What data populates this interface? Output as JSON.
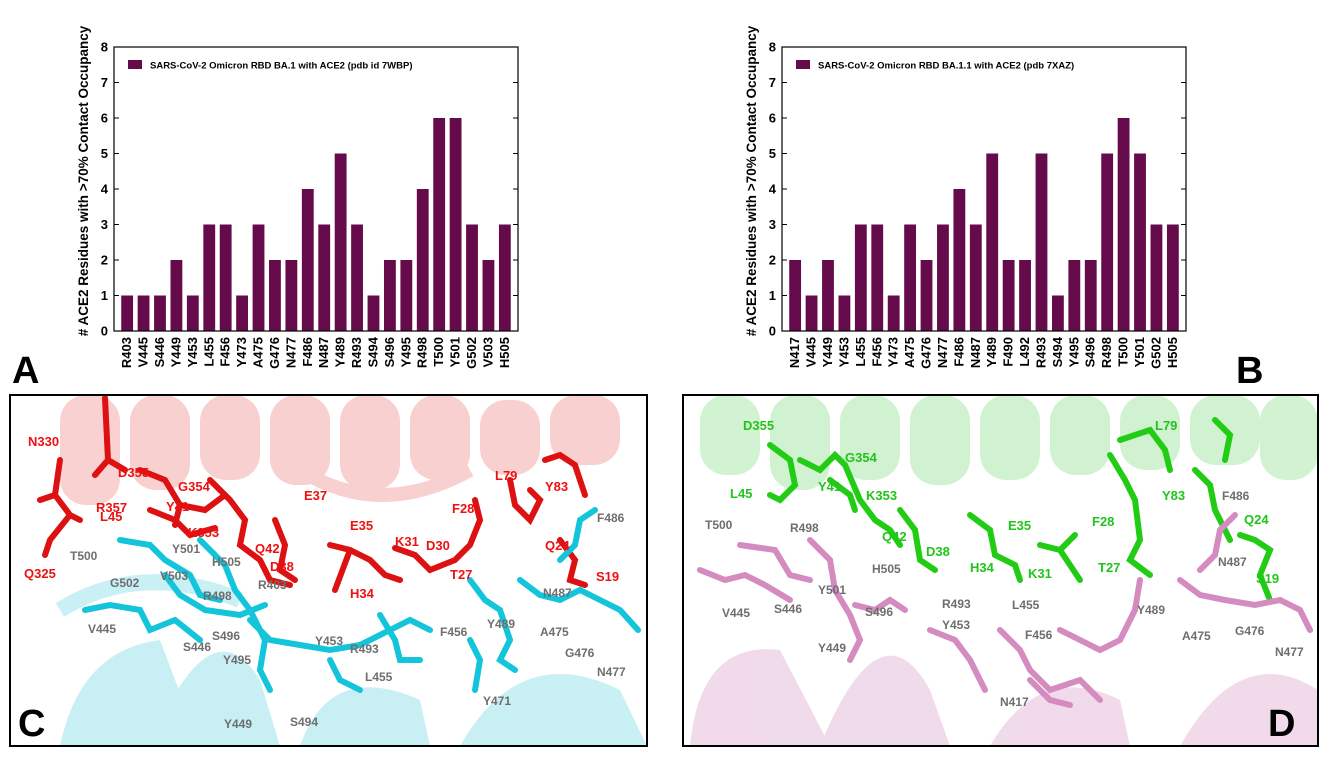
{
  "colors": {
    "bar": "#650a4a",
    "ace2_red": "#e01010",
    "rbd_cyan": "#16c8dc",
    "ace2_green": "#2ad41c",
    "rbd_pink": "#d98cc2",
    "label_red": "#ee1111",
    "label_green": "#22c41a",
    "label_gray": "#6e6e6e"
  },
  "panel_labels": {
    "A": "A",
    "B": "B",
    "C": "C",
    "D": "D"
  },
  "chart_data": [
    {
      "type": "bar",
      "title": "",
      "legend": "SARS-CoV-2 Omicron RBD BA.1 with ACE2 (pdb id 7WBP)",
      "legend_position": "top-left",
      "xlabel": "",
      "ylabel": "# ACE2 Residues with >70% Contact Occupancy",
      "ylim": [
        0,
        8
      ],
      "yticks": [
        0,
        1,
        2,
        3,
        4,
        5,
        6,
        7,
        8
      ],
      "grid": false,
      "categories": [
        "R403",
        "V445",
        "S446",
        "Y449",
        "Y453",
        "L455",
        "F456",
        "Y473",
        "A475",
        "G476",
        "N477",
        "F486",
        "N487",
        "Y489",
        "R493",
        "S494",
        "S496",
        "Y495",
        "R498",
        "T500",
        "Y501",
        "G502",
        "V503",
        "H505"
      ],
      "values": [
        1,
        1,
        1,
        2,
        1,
        3,
        3,
        1,
        3,
        2,
        2,
        4,
        3,
        5,
        3,
        1,
        2,
        2,
        4,
        6,
        6,
        3,
        2,
        3
      ]
    },
    {
      "type": "bar",
      "title": "",
      "legend": "SARS-CoV-2 Omicron RBD BA.1.1 with ACE2 (pdb 7XAZ)",
      "legend_position": "top-left",
      "xlabel": "",
      "ylabel": "# ACE2 Residues with >70% Contact Occupancy",
      "ylim": [
        0,
        8
      ],
      "yticks": [
        0,
        1,
        2,
        3,
        4,
        5,
        6,
        7,
        8
      ],
      "grid": false,
      "categories": [
        "N417",
        "V445",
        "Y449",
        "Y453",
        "L455",
        "F456",
        "Y473",
        "A475",
        "G476",
        "N477",
        "F486",
        "N487",
        "Y489",
        "F490",
        "L492",
        "R493",
        "S494",
        "Y495",
        "S496",
        "R498",
        "T500",
        "Y501",
        "G502",
        "H505"
      ],
      "values": [
        2,
        1,
        2,
        1,
        3,
        3,
        1,
        3,
        2,
        3,
        4,
        3,
        5,
        2,
        2,
        5,
        1,
        2,
        2,
        5,
        6,
        5,
        3,
        3
      ]
    }
  ],
  "structure_panels": {
    "C": {
      "ace2_labels": [
        "N330",
        "D355",
        "R357",
        "G354",
        "L45",
        "Y41",
        "K353",
        "E37",
        "Q42",
        "D38",
        "E35",
        "H34",
        "K31",
        "D30",
        "T27",
        "F28",
        "L79",
        "Y83",
        "Q24",
        "S19",
        "Q325"
      ],
      "rbd_labels": [
        "T500",
        "Y501",
        "G502",
        "V503",
        "H505",
        "R498",
        "R403",
        "V445",
        "S446",
        "S496",
        "Y495",
        "Y453",
        "R493",
        "L455",
        "F456",
        "Y489",
        "N487",
        "F486",
        "A475",
        "G476",
        "N477",
        "Y471",
        "Y449",
        "S494"
      ]
    },
    "D": {
      "ace2_labels": [
        "D355",
        "G354",
        "L45",
        "Y41",
        "K353",
        "Q42",
        "D38",
        "E35",
        "H34",
        "K31",
        "T27",
        "F28",
        "L79",
        "Y83",
        "Q24",
        "S19"
      ],
      "rbd_labels": [
        "T500",
        "R498",
        "Y501",
        "H505",
        "S496",
        "V445",
        "S446",
        "Y449",
        "R493",
        "Y453",
        "L455",
        "F456",
        "Y489",
        "F486",
        "N487",
        "A475",
        "G476",
        "N477",
        "N417"
      ]
    }
  }
}
